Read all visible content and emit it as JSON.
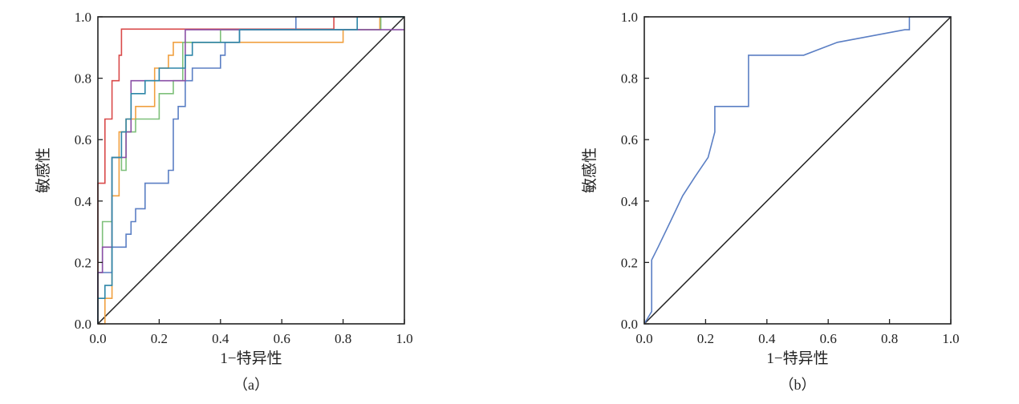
{
  "chart_data": [
    {
      "type": "line",
      "panel_caption": "（a）",
      "xlabel": "1−特异性",
      "ylabel": "敏感性",
      "xlim": [
        0,
        1
      ],
      "ylim": [
        0,
        1
      ],
      "x_ticks": [
        "0.0",
        "0.2",
        "0.4",
        "0.6",
        "0.8",
        "1.0"
      ],
      "y_ticks": [
        "0.0",
        "0.2",
        "0.4",
        "0.6",
        "0.8",
        "1.0"
      ],
      "reference_line": {
        "x": [
          0,
          1
        ],
        "y": [
          0,
          1
        ],
        "color": "#222222"
      },
      "series": [
        {
          "color": "#d94a4a",
          "x": [
            0,
            0,
            0.023,
            0.023,
            0.046,
            0.046,
            0.069,
            0.069,
            0.077,
            0.077,
            0.285,
            0.285,
            0.77,
            0.77,
            1.0
          ],
          "y": [
            0,
            0.458,
            0.458,
            0.667,
            0.667,
            0.792,
            0.792,
            0.875,
            0.875,
            0.96,
            0.96,
            0.96,
            0.96,
            1.0,
            1.0
          ]
        },
        {
          "color": "#f0a040",
          "x": [
            0,
            0.023,
            0.023,
            0.046,
            0.046,
            0.069,
            0.069,
            0.092,
            0.092,
            0.123,
            0.123,
            0.185,
            0.185,
            0.23,
            0.23,
            0.246,
            0.246,
            0.277,
            0.277,
            0.308,
            0.308,
            0.8,
            0.8,
            0.92,
            0.92,
            1.0
          ],
          "y": [
            0,
            0,
            0.083,
            0.083,
            0.417,
            0.417,
            0.625,
            0.625,
            0.667,
            0.667,
            0.708,
            0.708,
            0.833,
            0.833,
            0.875,
            0.875,
            0.917,
            0.917,
            0.917,
            0.917,
            0.917,
            0.917,
            0.958,
            0.958,
            1.0,
            1.0
          ]
        },
        {
          "color": "#7ec07a",
          "x": [
            0,
            0.0,
            0.015,
            0.015,
            0.046,
            0.046,
            0.077,
            0.077,
            0.092,
            0.092,
            0.123,
            0.123,
            0.2,
            0.2,
            0.246,
            0.246,
            0.277,
            0.277,
            0.308,
            0.308,
            0.4,
            0.4,
            0.923,
            0.923,
            1.0
          ],
          "y": [
            0,
            0.167,
            0.167,
            0.333,
            0.333,
            0.542,
            0.542,
            0.5,
            0.5,
            0.625,
            0.625,
            0.667,
            0.667,
            0.75,
            0.75,
            0.792,
            0.792,
            0.917,
            0.917,
            0.917,
            0.917,
            0.958,
            0.958,
            1.0,
            1.0
          ]
        },
        {
          "color": "#5b7fc4",
          "x": [
            0,
            0.0,
            0.046,
            0.046,
            0.092,
            0.092,
            0.108,
            0.108,
            0.123,
            0.123,
            0.154,
            0.154,
            0.2,
            0.2,
            0.23,
            0.23,
            0.246,
            0.246,
            0.262,
            0.262,
            0.285,
            0.285,
            0.308,
            0.308,
            0.4,
            0.4,
            0.415,
            0.415,
            0.462,
            0.462,
            0.646,
            0.646,
            1.0
          ],
          "y": [
            0,
            0.167,
            0.167,
            0.25,
            0.25,
            0.292,
            0.292,
            0.333,
            0.333,
            0.375,
            0.375,
            0.458,
            0.458,
            0.458,
            0.458,
            0.5,
            0.5,
            0.667,
            0.667,
            0.708,
            0.708,
            0.792,
            0.792,
            0.833,
            0.833,
            0.875,
            0.875,
            0.917,
            0.917,
            0.958,
            0.958,
            1.0,
            1.0
          ]
        },
        {
          "color": "#8a4fa6",
          "x": [
            0,
            0.0,
            0.015,
            0.015,
            0.046,
            0.046,
            0.092,
            0.092,
            0.108,
            0.108,
            0.285,
            0.285,
            0.923,
            0.923,
            1.0
          ],
          "y": [
            0,
            0.167,
            0.167,
            0.25,
            0.25,
            0.542,
            0.542,
            0.625,
            0.625,
            0.792,
            0.792,
            0.958,
            0.958,
            0.958,
            0.958
          ]
        },
        {
          "color": "#2e86a8",
          "x": [
            0,
            0.0,
            0.023,
            0.023,
            0.046,
            0.046,
            0.077,
            0.077,
            0.092,
            0.092,
            0.108,
            0.108,
            0.154,
            0.154,
            0.2,
            0.2,
            0.285,
            0.285,
            0.308,
            0.308,
            0.4,
            0.4,
            0.462,
            0.462,
            0.846,
            0.846,
            1.0
          ],
          "y": [
            0,
            0.083,
            0.083,
            0.125,
            0.125,
            0.542,
            0.542,
            0.625,
            0.625,
            0.667,
            0.667,
            0.75,
            0.75,
            0.792,
            0.792,
            0.833,
            0.833,
            0.875,
            0.875,
            0.917,
            0.917,
            0.917,
            0.917,
            0.958,
            0.958,
            1.0,
            1.0
          ]
        }
      ]
    },
    {
      "type": "line",
      "panel_caption": "（b）",
      "xlabel": "1−特异性",
      "ylabel": "敏感性",
      "xlim": [
        0,
        1
      ],
      "ylim": [
        0,
        1
      ],
      "x_ticks": [
        "0.0",
        "0.2",
        "0.4",
        "0.6",
        "0.8",
        "1.0"
      ],
      "y_ticks": [
        "0.0",
        "0.2",
        "0.4",
        "0.6",
        "0.8",
        "1.0"
      ],
      "reference_line": {
        "x": [
          0,
          1
        ],
        "y": [
          0,
          1
        ],
        "color": "#222222"
      },
      "series": [
        {
          "color": "#5b7fc4",
          "x": [
            0,
            0.024,
            0.024,
            0.045,
            0.085,
            0.125,
            0.166,
            0.208,
            0.23,
            0.23,
            0.237,
            0.34,
            0.34,
            0.52,
            0.63,
            0.85,
            0.865,
            0.865,
            1.0
          ],
          "y": [
            0,
            0.04,
            0.208,
            0.25,
            0.333,
            0.417,
            0.48,
            0.542,
            0.625,
            0.708,
            0.708,
            0.708,
            0.875,
            0.875,
            0.917,
            0.958,
            0.958,
            1.0,
            1.0
          ]
        }
      ]
    }
  ]
}
